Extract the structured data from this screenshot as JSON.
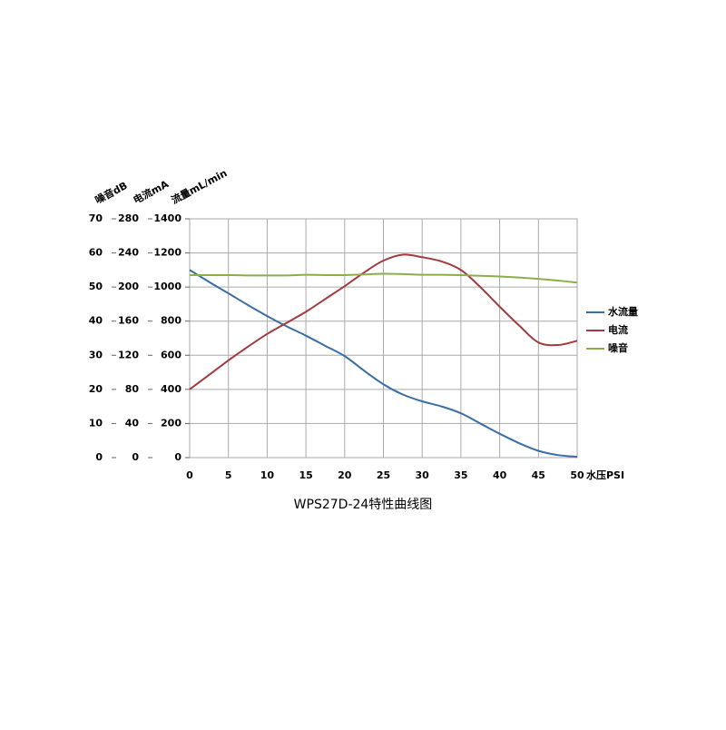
{
  "chart_data": {
    "type": "line",
    "title": "WPS27D-24特性曲线图",
    "x_label": "水压PSI",
    "y_label": "流量mL/min",
    "y2_label": "电流mA",
    "y3_label": "噪音dB",
    "x": [
      0,
      2.5,
      5,
      7.5,
      10,
      12.5,
      15,
      17.5,
      20,
      22.5,
      25,
      27.5,
      30,
      32.5,
      35,
      37.5,
      40,
      42.5,
      45,
      47.5,
      50
    ],
    "xlim": [
      0,
      50
    ],
    "xticks": [
      0,
      5,
      10,
      15,
      20,
      25,
      30,
      35,
      40,
      45,
      50
    ],
    "ylim": [
      0,
      1400
    ],
    "yticks": [
      0,
      200,
      400,
      600,
      800,
      1000,
      1200,
      1400
    ],
    "y2lim": [
      0,
      280
    ],
    "y2ticks": [
      0,
      40,
      80,
      120,
      160,
      200,
      240,
      280
    ],
    "y3lim": [
      0,
      70
    ],
    "y3ticks": [
      0,
      10,
      20,
      30,
      40,
      50,
      60,
      70
    ],
    "grid": true,
    "legend": "right",
    "series": [
      {
        "name": "水流量",
        "color": "#3a6ea8",
        "axis": "y",
        "values": [
          1100,
          1030,
          963,
          895,
          830,
          770,
          715,
          655,
          595,
          510,
          430,
          370,
          330,
          300,
          260,
          200,
          140,
          85,
          40,
          15,
          5
        ]
      },
      {
        "name": "电流",
        "color": "#a23b3e",
        "axis": "y2",
        "values": [
          80,
          97,
          114,
          130,
          145,
          158,
          171,
          186,
          201,
          217,
          231,
          238,
          235,
          230,
          220,
          200,
          177,
          155,
          135,
          132,
          137
        ]
      },
      {
        "name": "噪音",
        "color": "#8aae4c",
        "axis": "y3",
        "values": [
          53.5,
          53.5,
          53.5,
          53.4,
          53.4,
          53.4,
          53.6,
          53.5,
          53.5,
          53.7,
          53.9,
          53.8,
          53.6,
          53.6,
          53.5,
          53.3,
          53.1,
          52.8,
          52.4,
          51.9,
          51.3
        ]
      }
    ]
  }
}
